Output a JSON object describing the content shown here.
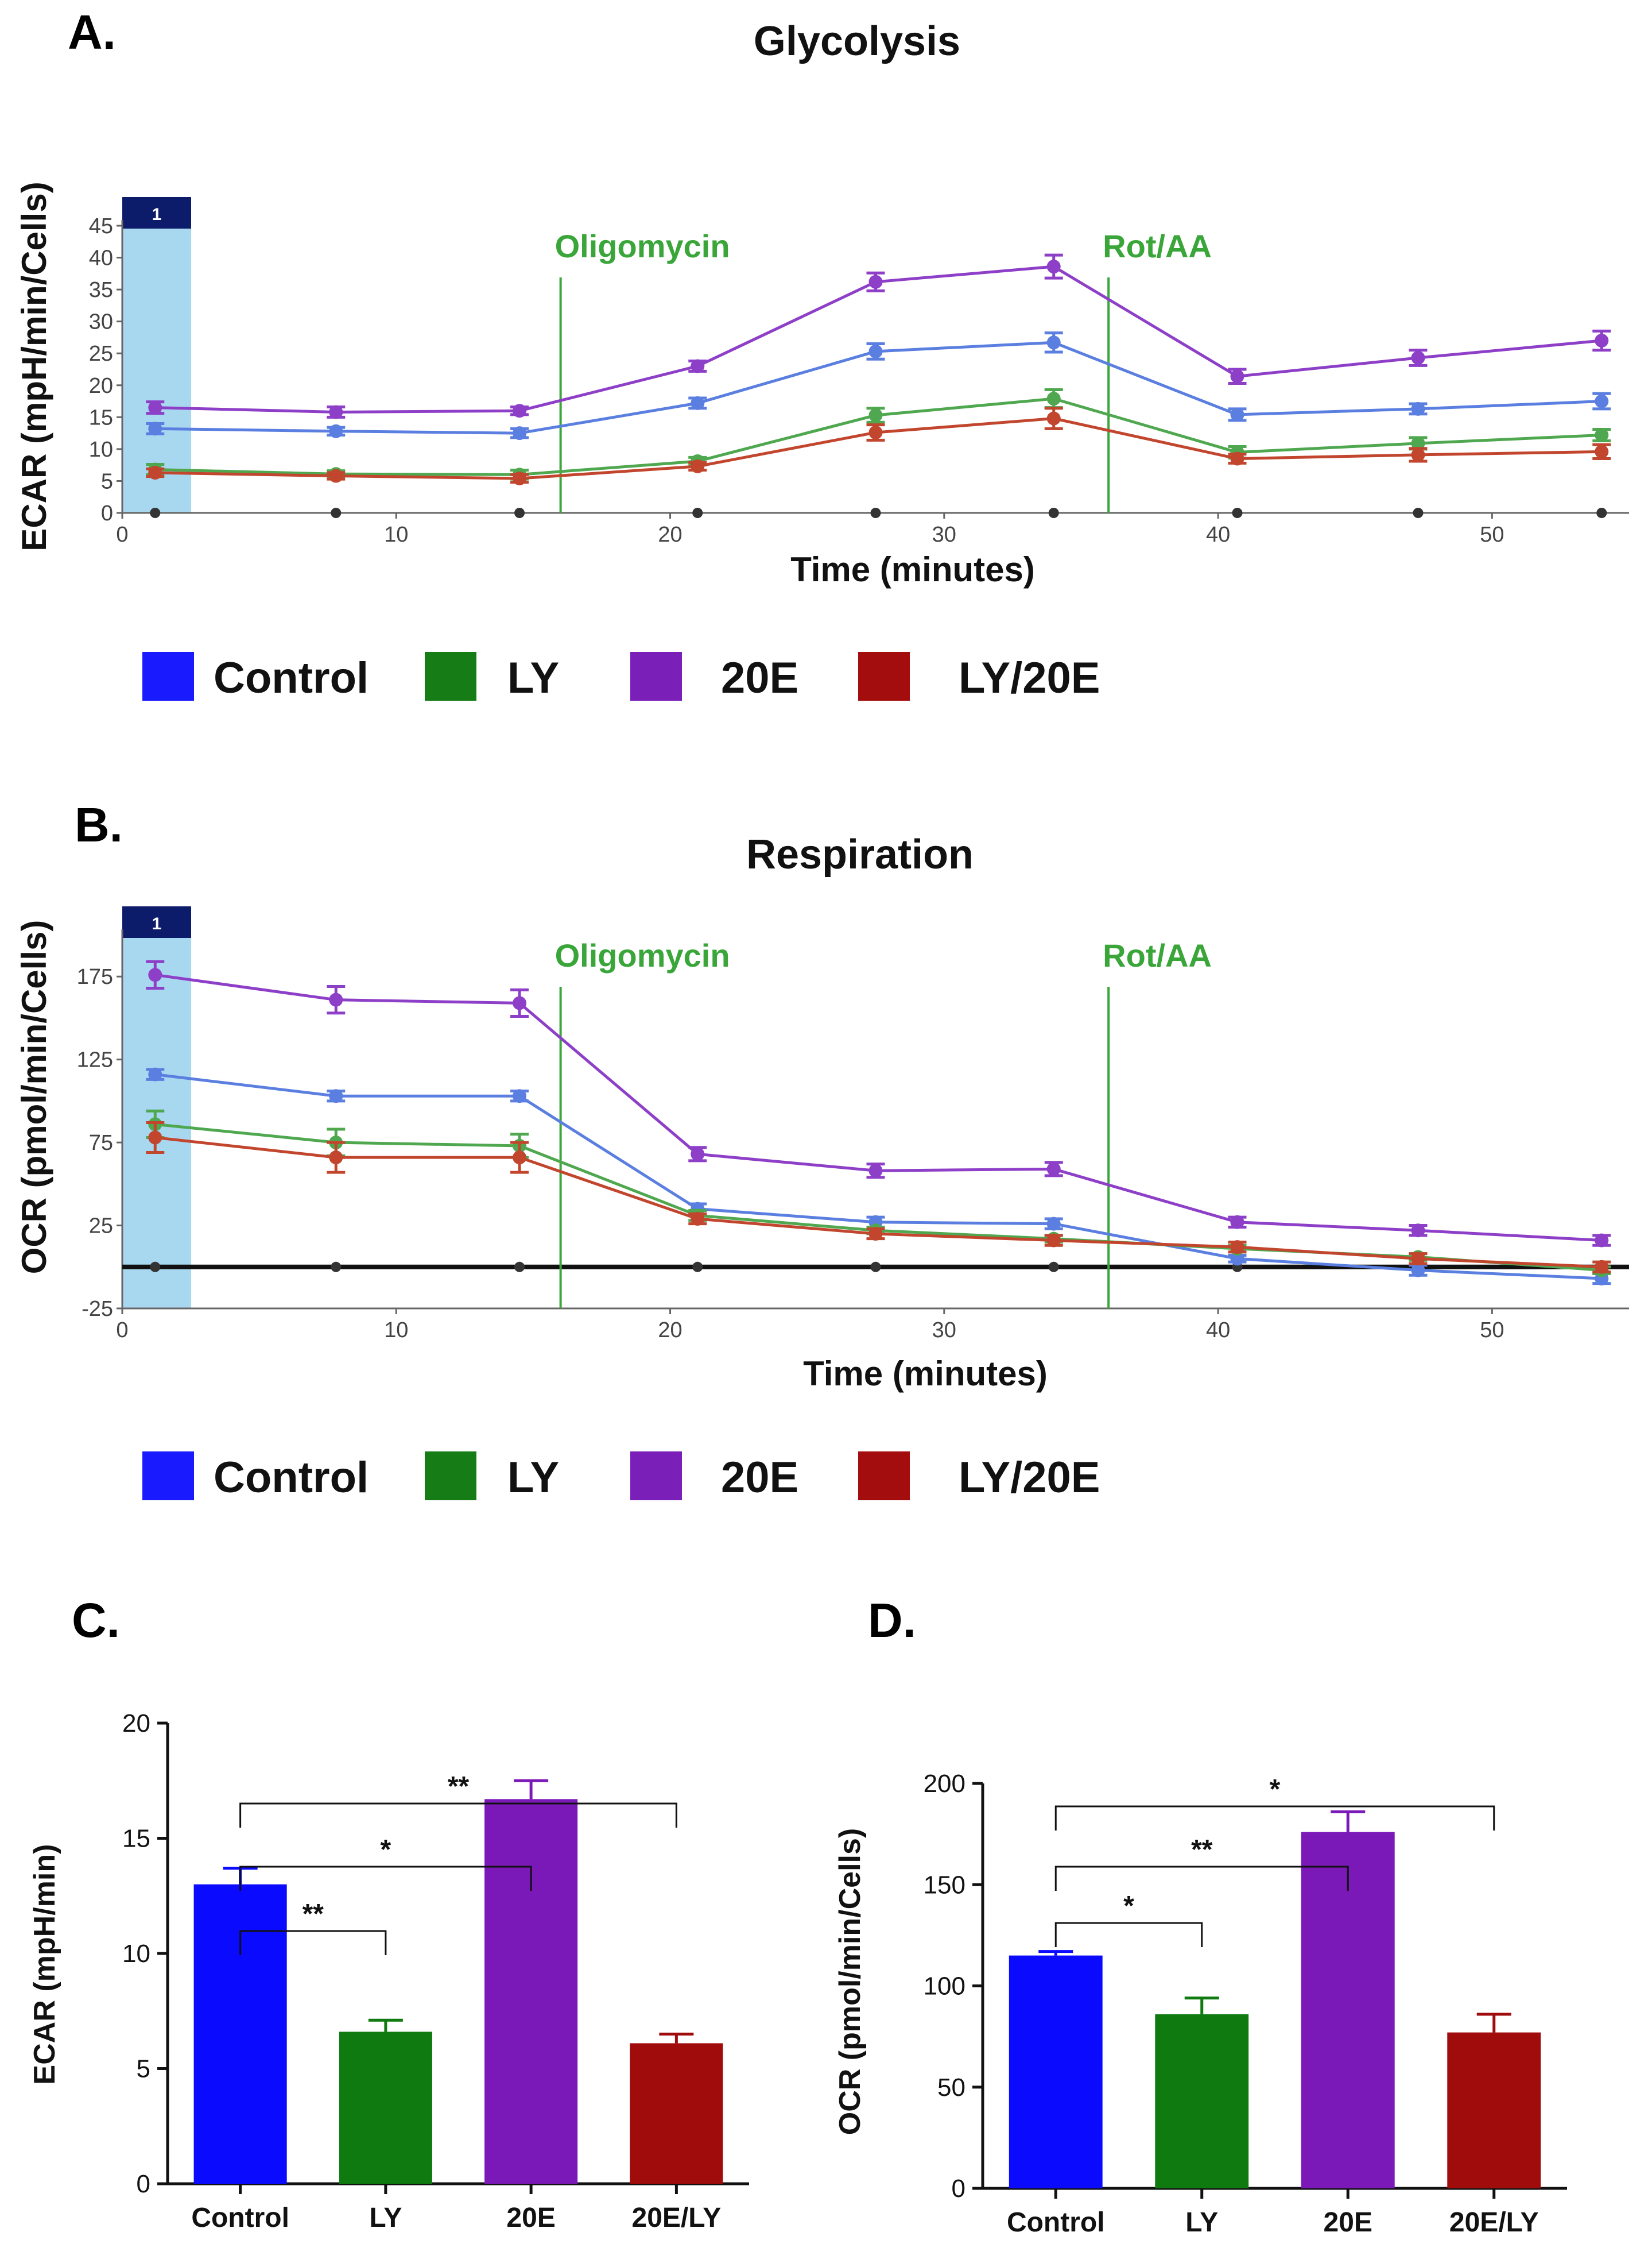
{
  "figure": {
    "panel_labels": [
      "A.",
      "B.",
      "C.",
      "D."
    ],
    "legend": [
      {
        "label": "Control",
        "color": "#1a1aff"
      },
      {
        "label": "LY",
        "color": "#167d16"
      },
      {
        "label": "20E",
        "color": "#7a1fb8"
      },
      {
        "label": "LY/20E",
        "color": "#a30d0d"
      }
    ],
    "injection_box_label": "1",
    "colors": {
      "control": "#5b7fe0",
      "ly": "#4fa84f",
      "e20": "#8e3fc8",
      "ly20e": "#c2462e",
      "injection": "#3aa63a",
      "shade": "#a8d8f0",
      "box": "#0d1b6b"
    }
  },
  "chart_data": [
    {
      "id": "A",
      "type": "line",
      "title": "Glycolysis",
      "xlabel": "Time (minutes)",
      "ylabel": "ECAR (mpH/min/Cells)",
      "xlim": [
        0,
        55
      ],
      "ylim": [
        0,
        45
      ],
      "xticks": [
        0,
        10,
        20,
        30,
        40,
        50
      ],
      "yticks": [
        0,
        5,
        10,
        15,
        20,
        25,
        30,
        35,
        40,
        45
      ],
      "injections": [
        {
          "label": "Oligomycin",
          "x": 16
        },
        {
          "label": "Rot/AA",
          "x": 36
        }
      ],
      "x": [
        1.2,
        7.8,
        14.5,
        21,
        27.5,
        34,
        40.7,
        47.3,
        54
      ],
      "series": [
        {
          "name": "Control",
          "values": [
            13.2,
            12.8,
            12.5,
            17.2,
            25.3,
            26.7,
            15.4,
            16.3,
            17.5
          ],
          "err": [
            0.8,
            0.6,
            0.7,
            0.8,
            1.2,
            1.5,
            0.9,
            0.8,
            1.2
          ]
        },
        {
          "name": "LY",
          "values": [
            6.8,
            6.1,
            6.0,
            8.1,
            15.3,
            17.9,
            9.5,
            10.9,
            12.2
          ],
          "err": [
            0.8,
            0.5,
            0.7,
            0.6,
            1.1,
            1.4,
            0.9,
            0.9,
            0.9
          ]
        },
        {
          "name": "20E",
          "values": [
            16.5,
            15.8,
            16.0,
            23.0,
            36.2,
            38.6,
            21.4,
            24.3,
            27.0
          ],
          "err": [
            0.9,
            0.8,
            0.6,
            0.8,
            1.4,
            1.8,
            1.1,
            1.2,
            1.5
          ]
        },
        {
          "name": "LY/20E",
          "values": [
            6.3,
            5.8,
            5.4,
            7.3,
            12.6,
            14.8,
            8.5,
            9.1,
            9.6
          ],
          "err": [
            0.6,
            0.5,
            0.6,
            0.6,
            1.2,
            1.6,
            0.7,
            1.0,
            1.1
          ]
        }
      ]
    },
    {
      "id": "B",
      "type": "line",
      "title": "Respiration",
      "xlabel": "Time (minutes)",
      "ylabel": "OCR (pmol/min/Cells)",
      "xlim": [
        0,
        55
      ],
      "ylim": [
        -25,
        200
      ],
      "xticks": [
        0,
        10,
        20,
        30,
        40,
        50
      ],
      "yticks": [
        -25,
        25,
        75,
        125,
        175
      ],
      "injections": [
        {
          "label": "Oligomycin",
          "x": 16
        },
        {
          "label": "Rot/AA",
          "x": 36
        }
      ],
      "x": [
        1.2,
        7.8,
        14.5,
        21,
        27.5,
        34,
        40.7,
        47.3,
        54
      ],
      "series": [
        {
          "name": "Control",
          "values": [
            116,
            103,
            103,
            35,
            27,
            26,
            5,
            -2,
            -7
          ],
          "err": [
            3,
            3,
            3,
            3,
            3,
            3,
            2,
            3,
            3
          ]
        },
        {
          "name": "LY",
          "values": [
            86,
            75,
            73,
            31,
            22,
            17,
            11,
            6,
            -2
          ],
          "err": [
            8,
            8,
            7,
            3,
            2,
            2,
            2,
            2,
            2
          ]
        },
        {
          "name": "20E",
          "values": [
            176,
            161,
            159,
            68,
            58,
            59,
            27,
            22,
            16
          ],
          "err": [
            8,
            8,
            8,
            4,
            4,
            4,
            3,
            3,
            3
          ]
        },
        {
          "name": "LY/20E",
          "values": [
            78,
            66,
            66,
            29,
            20,
            16,
            12,
            5,
            0
          ],
          "err": [
            9,
            9,
            9,
            3,
            3,
            3,
            3,
            3,
            3
          ]
        }
      ]
    },
    {
      "id": "C",
      "type": "bar",
      "title": "",
      "ylabel": "ECAR (mpH/min)",
      "ylim": [
        0,
        20
      ],
      "yticks": [
        0,
        5,
        10,
        15,
        20
      ],
      "categories": [
        "Control",
        "LY",
        "20E",
        "20E/LY"
      ],
      "values": [
        13.0,
        6.6,
        16.7,
        6.1
      ],
      "err": [
        0.7,
        0.5,
        0.8,
        0.4
      ],
      "colors": [
        "#0a0aff",
        "#0f7a0f",
        "#7a19b8",
        "#a00b0b"
      ],
      "significance": [
        {
          "from": 0,
          "to": 1,
          "label": "**"
        },
        {
          "from": 0,
          "to": 2,
          "label": "*"
        },
        {
          "from": 0,
          "to": 3,
          "label": "**"
        }
      ]
    },
    {
      "id": "D",
      "type": "bar",
      "title": "",
      "ylabel": "OCR (pmol/min/Cells)",
      "ylim": [
        0,
        200
      ],
      "yticks": [
        0,
        50,
        100,
        150,
        200
      ],
      "categories": [
        "Control",
        "LY",
        "20E",
        "20E/LY"
      ],
      "values": [
        115,
        86,
        176,
        77
      ],
      "err": [
        2,
        8,
        10,
        9
      ],
      "colors": [
        "#0a0aff",
        "#0f7a0f",
        "#7a19b8",
        "#a00b0b"
      ],
      "significance": [
        {
          "from": 0,
          "to": 1,
          "label": "*"
        },
        {
          "from": 0,
          "to": 2,
          "label": "**"
        },
        {
          "from": 0,
          "to": 3,
          "label": "*"
        }
      ]
    }
  ]
}
